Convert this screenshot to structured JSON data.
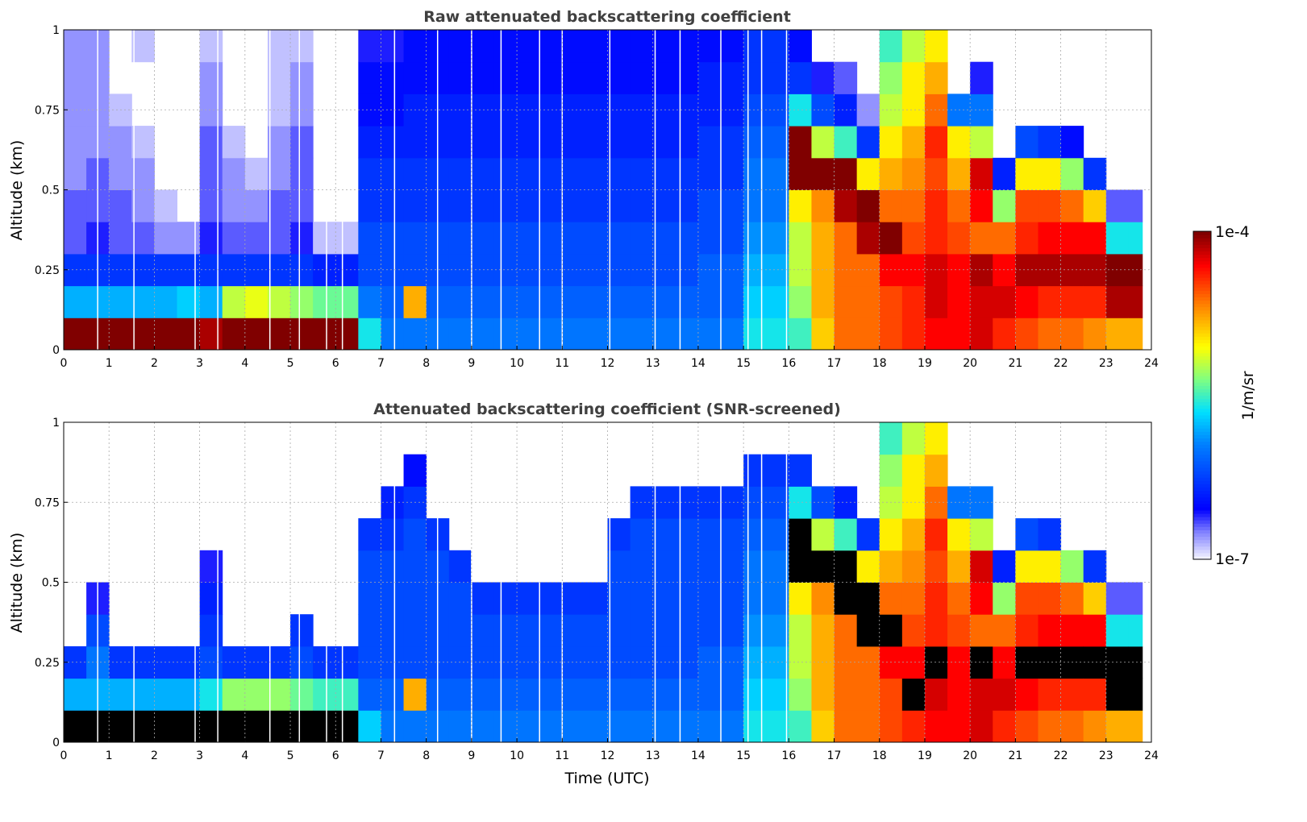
{
  "chart_data": [
    {
      "type": "heatmap",
      "title": "Raw attenuated backscattering coefficient",
      "xlabel": "",
      "ylabel": "Altitude (km)",
      "xlim": [
        0,
        24
      ],
      "ylim": [
        0,
        1
      ],
      "x_ticks": [
        "0",
        "1",
        "2",
        "3",
        "4",
        "5",
        "6",
        "7",
        "8",
        "9",
        "10",
        "11",
        "12",
        "13",
        "14",
        "15",
        "16",
        "17",
        "18",
        "19",
        "20",
        "21",
        "22",
        "23",
        "24"
      ],
      "y_ticks": [
        "0",
        "0.25",
        "0.5",
        "0.75",
        "1"
      ],
      "grid": true,
      "saturated_color": "#800000",
      "time_bin_hours": 0.5,
      "alt_bin_km": 0.1,
      "data_end_hour": 23.8,
      "gap_times": [
        0.75,
        1.55,
        2.9,
        3.4,
        4.55,
        5.2,
        5.8,
        6.15,
        7.3,
        8.25,
        9.0,
        9.65,
        10.5,
        11.0,
        12.05,
        13.05,
        13.6,
        14.5,
        15.1,
        15.4,
        15.95
      ],
      "log10_values": [
        [
          -4.0,
          -5.8,
          -6.3,
          -6.7,
          -6.7,
          -6.8,
          -6.8,
          -6.8,
          -6.8,
          -6.8
        ],
        [
          -4.0,
          -5.8,
          -6.3,
          -6.6,
          -6.7,
          -6.7,
          -6.8,
          -6.8,
          -6.8,
          -6.8
        ],
        [
          -4.0,
          -5.8,
          -6.3,
          -6.7,
          -6.7,
          -6.8,
          -6.8,
          -6.9,
          null,
          null
        ],
        [
          -4.0,
          -5.8,
          -6.3,
          -6.7,
          -6.8,
          -6.8,
          -6.9,
          null,
          null,
          -6.9
        ],
        [
          -4.0,
          -5.8,
          -6.3,
          -6.8,
          -6.9,
          null,
          null,
          null,
          null,
          null
        ],
        [
          -4.0,
          -5.7,
          -6.3,
          -6.8,
          null,
          null,
          null,
          null,
          null,
          null
        ],
        [
          -4.1,
          -5.8,
          -6.3,
          -6.6,
          -6.7,
          -6.7,
          -6.7,
          -6.8,
          -6.8,
          -6.9
        ],
        [
          -4.0,
          -5.2,
          -6.3,
          -6.7,
          -6.8,
          -6.8,
          -6.9,
          null,
          null,
          null
        ],
        [
          -4.0,
          -5.1,
          -6.3,
          -6.7,
          -6.8,
          -6.9,
          null,
          null,
          null,
          null
        ],
        [
          -4.0,
          -5.2,
          -6.3,
          -6.7,
          -6.7,
          -6.8,
          -6.8,
          -6.9,
          -6.9,
          -6.9
        ],
        [
          -4.0,
          -5.3,
          -6.3,
          -6.6,
          -6.7,
          -6.7,
          -6.7,
          -6.8,
          -6.8,
          -6.9
        ],
        [
          -4.0,
          -5.4,
          -6.4,
          -6.9,
          null,
          null,
          null,
          null,
          null,
          null
        ],
        [
          -4.0,
          -5.4,
          -6.4,
          -6.9,
          null,
          null,
          null,
          null,
          null,
          null
        ],
        [
          -5.6,
          -6.0,
          -6.2,
          -6.2,
          -6.3,
          -6.3,
          -6.4,
          -6.5,
          -6.5,
          -6.6
        ],
        [
          -6.0,
          -6.1,
          -6.2,
          -6.2,
          -6.3,
          -6.3,
          -6.4,
          -6.5,
          -6.5,
          -6.6
        ],
        [
          -6.0,
          -4.8,
          -6.2,
          -6.2,
          -6.3,
          -6.3,
          -6.4,
          -6.4,
          -6.5,
          -6.5
        ],
        [
          -6.0,
          -6.1,
          -6.2,
          -6.2,
          -6.3,
          -6.3,
          -6.4,
          -6.4,
          -6.5,
          -6.5
        ],
        [
          -6.0,
          -6.1,
          -6.2,
          -6.2,
          -6.3,
          -6.3,
          -6.4,
          -6.4,
          -6.5,
          -6.5
        ],
        [
          -6.0,
          -6.1,
          -6.2,
          -6.2,
          -6.3,
          -6.3,
          -6.4,
          -6.4,
          -6.5,
          -6.5
        ],
        [
          -6.0,
          -6.1,
          -6.2,
          -6.2,
          -6.3,
          -6.3,
          -6.4,
          -6.4,
          -6.5,
          -6.5
        ],
        [
          -6.0,
          -6.1,
          -6.2,
          -6.2,
          -6.3,
          -6.3,
          -6.4,
          -6.4,
          -6.5,
          -6.5
        ],
        [
          -6.0,
          -6.1,
          -6.2,
          -6.2,
          -6.3,
          -6.3,
          -6.4,
          -6.4,
          -6.5,
          -6.5
        ],
        [
          -6.0,
          -6.1,
          -6.2,
          -6.2,
          -6.3,
          -6.3,
          -6.4,
          -6.4,
          -6.5,
          -6.5
        ],
        [
          -6.0,
          -6.1,
          -6.2,
          -6.2,
          -6.3,
          -6.3,
          -6.4,
          -6.4,
          -6.5,
          -6.5
        ],
        [
          -6.0,
          -6.1,
          -6.2,
          -6.2,
          -6.3,
          -6.3,
          -6.4,
          -6.4,
          -6.5,
          -6.5
        ],
        [
          -6.0,
          -6.1,
          -6.2,
          -6.2,
          -6.3,
          -6.3,
          -6.4,
          -6.4,
          -6.5,
          -6.5
        ],
        [
          -6.0,
          -6.1,
          -6.2,
          -6.2,
          -6.3,
          -6.3,
          -6.4,
          -6.4,
          -6.5,
          -6.5
        ],
        [
          -6.0,
          -6.1,
          -6.2,
          -6.2,
          -6.3,
          -6.3,
          -6.4,
          -6.4,
          -6.5,
          -6.5
        ],
        [
          -6.0,
          -6.1,
          -6.1,
          -6.2,
          -6.2,
          -6.3,
          -6.3,
          -6.4,
          -6.4,
          -6.5
        ],
        [
          -6.0,
          -6.1,
          -6.1,
          -6.2,
          -6.2,
          -6.3,
          -6.3,
          -6.4,
          -6.4,
          -6.5
        ],
        [
          -5.6,
          -5.7,
          -5.8,
          -5.9,
          -6.0,
          -6.0,
          -6.1,
          -6.2,
          -6.3,
          -6.3
        ],
        [
          -5.6,
          -5.7,
          -5.8,
          -5.9,
          -6.0,
          -6.0,
          -6.1,
          -6.2,
          -6.3,
          -6.3
        ],
        [
          -5.5,
          -5.3,
          -5.2,
          -5.2,
          -5.0,
          -4.0,
          -4.0,
          -5.6,
          -6.3,
          -6.5
        ],
        [
          -4.9,
          -4.8,
          -4.8,
          -4.8,
          -4.7,
          -4.0,
          -5.2,
          -6.2,
          -6.6,
          null
        ],
        [
          -4.6,
          -4.6,
          -4.6,
          -4.6,
          -4.1,
          -4.0,
          -5.5,
          -6.4,
          -6.7,
          null
        ],
        [
          -4.6,
          -4.6,
          -4.6,
          -4.1,
          -4.0,
          -5.0,
          -6.3,
          -6.8,
          null,
          null
        ],
        [
          -4.5,
          -4.5,
          -4.3,
          -4.0,
          -4.6,
          -4.8,
          -5.0,
          -5.2,
          -5.3,
          -5.5
        ],
        [
          -4.4,
          -4.4,
          -4.3,
          -4.5,
          -4.6,
          -4.7,
          -4.8,
          -5.0,
          -5.0,
          -5.2
        ],
        [
          -4.3,
          -4.2,
          -4.2,
          -4.4,
          -4.4,
          -4.5,
          -4.4,
          -4.6,
          -4.8,
          -5.0
        ],
        [
          -4.3,
          -4.3,
          -4.3,
          -4.5,
          -4.6,
          -4.8,
          -5.0,
          -6.0,
          null,
          null
        ],
        [
          -4.2,
          -4.2,
          -4.1,
          -4.6,
          -4.3,
          -4.2,
          -5.2,
          -6.0,
          -6.6,
          null
        ],
        [
          -4.4,
          -4.2,
          -4.3,
          -4.6,
          -5.3,
          -6.4,
          null,
          null,
          null,
          null
        ],
        [
          -4.5,
          -4.3,
          -4.1,
          -4.4,
          -4.5,
          -5.0,
          -6.2,
          null,
          null,
          null
        ],
        [
          -4.6,
          -4.4,
          -4.1,
          -4.3,
          -4.5,
          -5.0,
          -6.3,
          null,
          null,
          null
        ],
        [
          -4.6,
          -4.4,
          -4.1,
          -4.3,
          -4.6,
          -5.3,
          -6.5,
          null,
          null,
          null
        ],
        [
          -4.7,
          -4.4,
          -4.1,
          -4.3,
          -4.9,
          -6.3,
          null,
          null,
          null,
          null
        ],
        [
          -4.8,
          -4.1,
          -4.0,
          -5.6,
          -6.7,
          null,
          null,
          null,
          null,
          null
        ],
        [
          -4.8,
          -4.1,
          -4.0,
          -5.6,
          -6.7,
          null,
          null,
          null,
          null,
          null
        ]
      ]
    },
    {
      "type": "heatmap",
      "title": "Attenuated backscattering coefficient (SNR-screened)",
      "xlabel": "Time (UTC)",
      "ylabel": "Altitude (km)",
      "xlim": [
        0,
        24
      ],
      "ylim": [
        0,
        1
      ],
      "x_ticks": [
        "0",
        "1",
        "2",
        "3",
        "4",
        "5",
        "6",
        "7",
        "8",
        "9",
        "10",
        "11",
        "12",
        "13",
        "14",
        "15",
        "16",
        "17",
        "18",
        "19",
        "20",
        "21",
        "22",
        "23",
        "24"
      ],
      "y_ticks": [
        "0",
        "0.25",
        "0.5",
        "0.75",
        "1"
      ],
      "grid": true,
      "saturated_color": "#000000",
      "time_bin_hours": 0.5,
      "alt_bin_km": 0.1,
      "data_end_hour": 23.8,
      "gap_times": [
        0.75,
        1.55,
        2.9,
        3.4,
        4.55,
        5.2,
        5.8,
        6.15,
        7.3,
        8.25,
        9.0,
        9.65,
        10.5,
        11.0,
        12.05,
        13.05,
        13.6,
        14.5,
        15.1,
        15.4,
        15.95
      ],
      "log10_values": [
        [
          -3.9,
          -5.8,
          -6.3,
          null,
          null,
          null,
          null,
          null,
          null,
          null
        ],
        [
          -3.9,
          -5.8,
          -6.0,
          -6.2,
          -6.6,
          null,
          null,
          null,
          null,
          null
        ],
        [
          -3.9,
          -5.8,
          -6.3,
          null,
          null,
          null,
          null,
          null,
          null,
          null
        ],
        [
          -3.9,
          -5.8,
          -6.3,
          null,
          null,
          null,
          null,
          null,
          null,
          null
        ],
        [
          -3.9,
          -5.8,
          -6.3,
          null,
          null,
          null,
          null,
          null,
          null,
          null
        ],
        [
          -3.9,
          -5.8,
          -6.3,
          null,
          null,
          null,
          null,
          null,
          null,
          null
        ],
        [
          -3.9,
          -5.6,
          -6.2,
          -6.3,
          -6.4,
          -6.6,
          null,
          null,
          null,
          null
        ],
        [
          -3.9,
          -5.3,
          -6.3,
          null,
          null,
          null,
          null,
          null,
          null,
          null
        ],
        [
          -3.9,
          -5.3,
          -6.3,
          null,
          null,
          null,
          null,
          null,
          null,
          null
        ],
        [
          -3.9,
          -5.3,
          -6.3,
          null,
          null,
          null,
          null,
          null,
          null,
          null
        ],
        [
          -3.9,
          -5.4,
          -6.2,
          -6.3,
          null,
          null,
          null,
          null,
          null,
          null
        ],
        [
          -3.9,
          -5.5,
          -6.3,
          null,
          null,
          null,
          null,
          null,
          null,
          null
        ],
        [
          -3.9,
          -5.5,
          -6.3,
          null,
          null,
          null,
          null,
          null,
          null,
          null
        ],
        [
          -5.7,
          -6.1,
          -6.2,
          -6.2,
          -6.2,
          -6.2,
          -6.3,
          null,
          null,
          null
        ],
        [
          -6.0,
          -6.1,
          -6.2,
          -6.2,
          -6.2,
          -6.2,
          -6.3,
          -6.4,
          null,
          null
        ],
        [
          -6.0,
          -4.8,
          -6.2,
          -6.2,
          -6.2,
          -6.2,
          -6.2,
          -6.3,
          -6.5,
          null
        ],
        [
          -6.0,
          -6.1,
          -6.2,
          -6.2,
          -6.2,
          -6.2,
          -6.3,
          null,
          null,
          null
        ],
        [
          -6.0,
          -6.1,
          -6.2,
          -6.2,
          -6.2,
          -6.3,
          null,
          null,
          null,
          null
        ],
        [
          -6.0,
          -6.1,
          -6.2,
          -6.2,
          -6.3,
          null,
          null,
          null,
          null,
          null
        ],
        [
          -6.0,
          -6.1,
          -6.2,
          -6.2,
          -6.3,
          null,
          null,
          null,
          null,
          null
        ],
        [
          -6.0,
          -6.1,
          -6.2,
          -6.2,
          -6.3,
          null,
          null,
          null,
          null,
          null
        ],
        [
          -6.0,
          -6.1,
          -6.2,
          -6.2,
          -6.3,
          null,
          null,
          null,
          null,
          null
        ],
        [
          -6.0,
          -6.1,
          -6.2,
          -6.2,
          -6.3,
          null,
          null,
          null,
          null,
          null
        ],
        [
          -6.0,
          -6.1,
          -6.2,
          -6.2,
          -6.3,
          null,
          null,
          null,
          null,
          null
        ],
        [
          -6.0,
          -6.1,
          -6.2,
          -6.2,
          -6.2,
          -6.2,
          -6.3,
          null,
          null,
          null
        ],
        [
          -6.0,
          -6.1,
          -6.2,
          -6.2,
          -6.2,
          -6.2,
          -6.2,
          -6.3,
          null,
          null
        ],
        [
          -6.0,
          -6.1,
          -6.2,
          -6.2,
          -6.2,
          -6.2,
          -6.2,
          -6.3,
          null,
          null
        ],
        [
          -6.0,
          -6.1,
          -6.2,
          -6.2,
          -6.2,
          -6.2,
          -6.2,
          -6.3,
          null,
          null
        ],
        [
          -6.0,
          -6.1,
          -6.1,
          -6.2,
          -6.2,
          -6.2,
          -6.2,
          -6.3,
          null,
          null
        ],
        [
          -6.0,
          -6.1,
          -6.1,
          -6.2,
          -6.2,
          -6.2,
          -6.2,
          -6.3,
          null,
          null
        ],
        [
          -5.6,
          -5.7,
          -5.8,
          -5.9,
          -6.0,
          -6.0,
          -6.1,
          -6.2,
          -6.3,
          null
        ],
        [
          -5.6,
          -5.7,
          -5.8,
          -5.9,
          -6.0,
          -6.0,
          -6.1,
          -6.2,
          -6.3,
          null
        ],
        [
          -5.5,
          -5.3,
          -5.2,
          -5.2,
          -5.0,
          -3.9,
          -3.9,
          -5.6,
          -6.3,
          null
        ],
        [
          -4.9,
          -4.8,
          -4.8,
          -4.8,
          -4.7,
          -3.9,
          -5.2,
          -6.2,
          null,
          null
        ],
        [
          -4.6,
          -4.6,
          -4.6,
          -4.6,
          -3.9,
          -3.9,
          -5.5,
          -6.4,
          null,
          null
        ],
        [
          -4.6,
          -4.6,
          -4.6,
          -3.9,
          -3.9,
          -5.0,
          -6.3,
          null,
          null,
          null
        ],
        [
          -4.5,
          -4.5,
          -4.3,
          -3.9,
          -4.6,
          -4.8,
          -5.0,
          -5.2,
          -5.3,
          -5.5
        ],
        [
          -4.4,
          -3.9,
          -4.3,
          -4.5,
          -4.6,
          -4.7,
          -4.8,
          -5.0,
          -5.0,
          -5.2
        ],
        [
          -4.3,
          -4.2,
          -3.9,
          -4.4,
          -4.4,
          -4.5,
          -4.4,
          -4.6,
          -4.8,
          -5.0
        ],
        [
          -4.3,
          -4.3,
          -4.3,
          -4.5,
          -4.6,
          -4.8,
          -5.0,
          -6.0,
          null,
          null
        ],
        [
          -4.2,
          -4.2,
          -3.9,
          -4.6,
          -4.3,
          -4.2,
          -5.2,
          -6.0,
          null,
          null
        ],
        [
          -4.4,
          -4.2,
          -4.3,
          -4.6,
          -5.3,
          -6.4,
          null,
          null,
          null,
          null
        ],
        [
          -4.5,
          -4.3,
          -3.9,
          -4.4,
          -4.5,
          -5.0,
          -6.2,
          null,
          null,
          null
        ],
        [
          -4.6,
          -4.4,
          -3.9,
          -4.3,
          -4.5,
          -5.0,
          -6.3,
          null,
          null,
          null
        ],
        [
          -4.6,
          -4.4,
          -3.9,
          -4.3,
          -4.6,
          -5.3,
          null,
          null,
          null,
          null
        ],
        [
          -4.7,
          -4.4,
          -3.9,
          -4.3,
          -4.9,
          -6.3,
          null,
          null,
          null,
          null
        ],
        [
          -4.8,
          -3.9,
          -3.9,
          -5.6,
          -6.7,
          null,
          null,
          null,
          null,
          null
        ],
        [
          -4.8,
          -3.9,
          -3.9,
          -5.6,
          -6.7,
          null,
          null,
          null,
          null,
          null
        ]
      ]
    }
  ],
  "colorbar": {
    "label": "1/m/sr",
    "max_label": "1e-4",
    "min_label": "1e-7",
    "log10_range": [
      -7,
      -4
    ],
    "scale": "log"
  }
}
